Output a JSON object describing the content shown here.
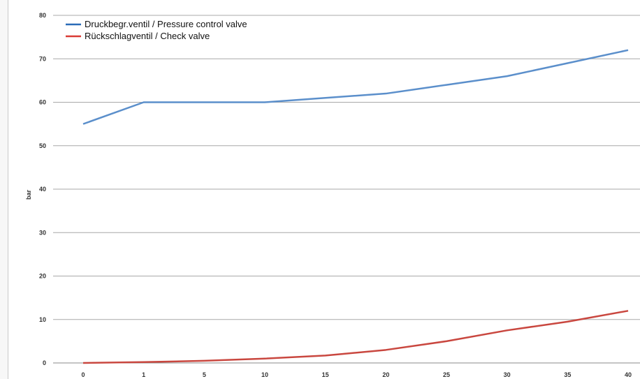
{
  "chart_data": {
    "type": "line",
    "categories": [
      "0",
      "1",
      "5",
      "10",
      "15",
      "20",
      "25",
      "30",
      "35",
      "40"
    ],
    "ylabel": "bar",
    "ylim": [
      0,
      80
    ],
    "yticks": [
      0,
      10,
      20,
      30,
      40,
      50,
      60,
      70,
      80
    ],
    "grid": true,
    "legend_position": "top-left",
    "series": [
      {
        "name": "Druckbegr.ventil / Pressure control valve",
        "color": "#5b8fcb",
        "values": [
          55,
          60,
          60,
          60,
          61,
          62,
          64,
          66,
          69,
          72
        ]
      },
      {
        "name": "Rückschlagventil / Check valve",
        "color": "#c9473f",
        "values": [
          0,
          0.2,
          0.5,
          1,
          1.7,
          3,
          5,
          7.5,
          9.5,
          12
        ]
      }
    ],
    "legend_colors": [
      "#2a6cb8",
      "#d93b35"
    ]
  }
}
